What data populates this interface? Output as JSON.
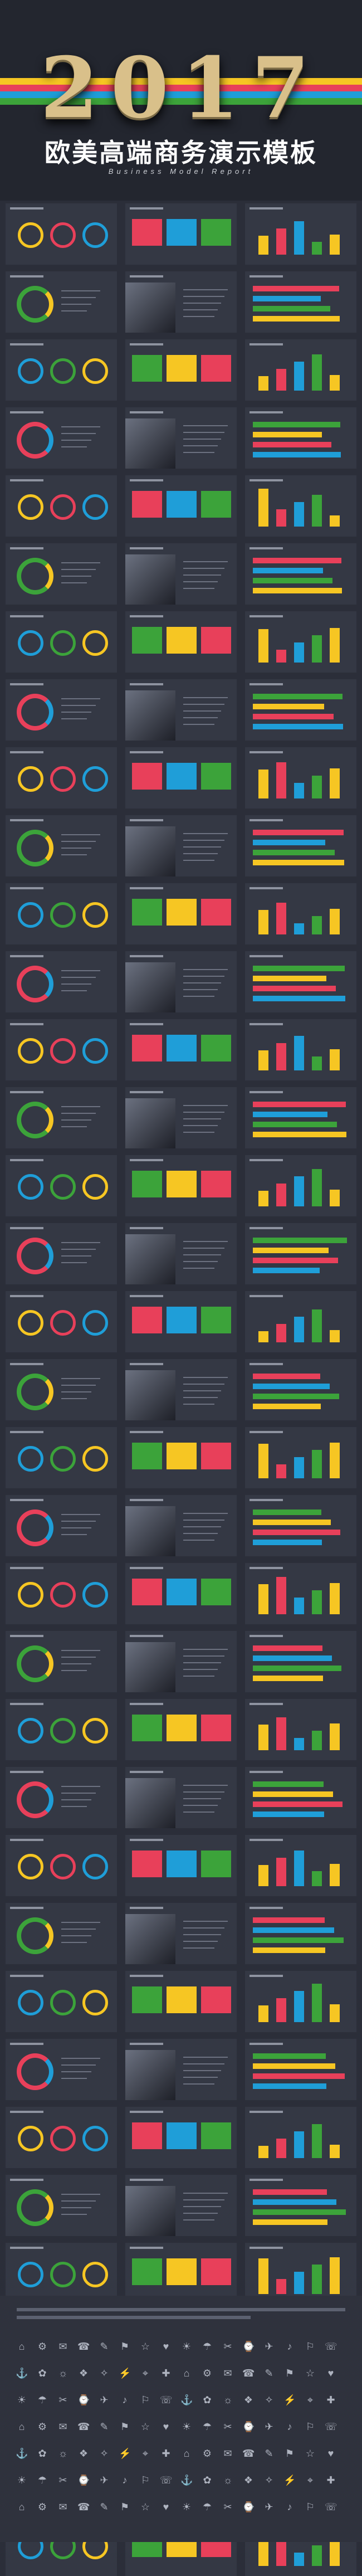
{
  "header": {
    "year": "2017",
    "title": "欧美高端商务演示模板",
    "subtitle": "Business Model Report"
  },
  "colors": {
    "yellow": "#f6c623",
    "red": "#e8405a",
    "blue": "#1f9ed8",
    "green": "#3ca33a",
    "dark": "#2b2e39",
    "slide": "#343844"
  },
  "slides_count": 105,
  "footer_icons": [
    "⌂",
    "⚙",
    "✉",
    "☎",
    "✎",
    "⚑",
    "☆",
    "♥",
    "☀",
    "☂",
    "✂",
    "⌚",
    "✈",
    "♪",
    "⚐",
    "☏",
    "⚓",
    "✿",
    "☼",
    "❖",
    "✧",
    "⚡",
    "⌖",
    "✚"
  ]
}
